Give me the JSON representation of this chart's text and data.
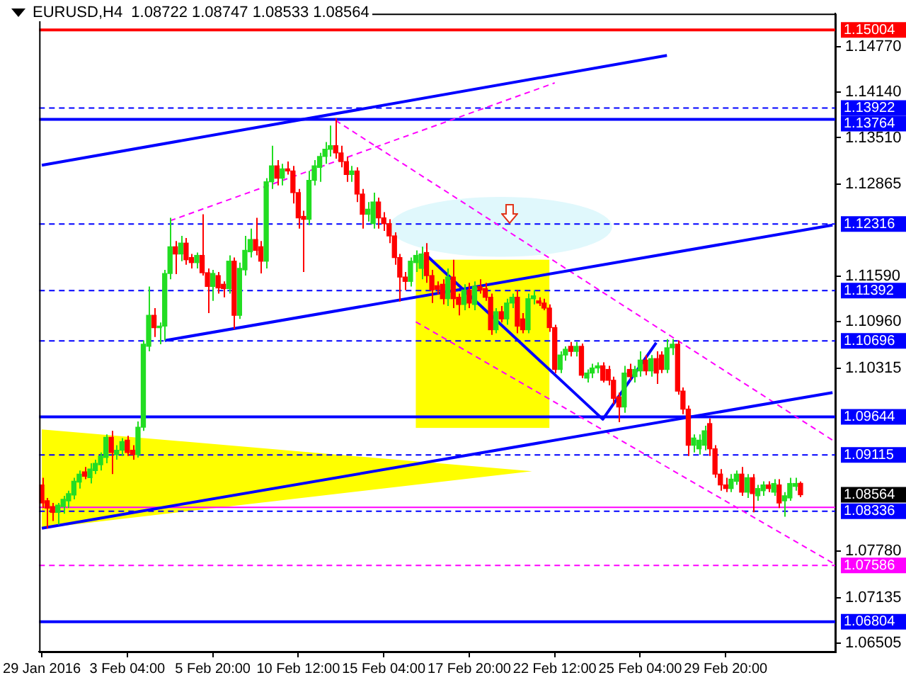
{
  "chart_data": {
    "type": "candlestick",
    "title": "EURUSD,H4  1.08722 1.08747 1.08533 1.08564",
    "categories": [
      "29 Jan 2016",
      null,
      null,
      null,
      null,
      null,
      null,
      null,
      null,
      null,
      null,
      null,
      null,
      null,
      null,
      null,
      "3 Feb 04:00",
      null,
      null,
      null,
      null,
      null,
      null,
      null,
      null,
      null,
      null,
      null,
      null,
      null,
      null,
      null,
      "5 Feb 20:00",
      null,
      null,
      null,
      null,
      null,
      null,
      null,
      null,
      null,
      null,
      null,
      null,
      null,
      null,
      null,
      "10 Feb 12:00",
      null,
      null,
      null,
      null,
      null,
      null,
      null,
      null,
      null,
      null,
      null,
      null,
      null,
      null,
      null,
      "15 Feb 04:00",
      null,
      null,
      null,
      null,
      null,
      null,
      null,
      null,
      null,
      null,
      null,
      null,
      null,
      null,
      null,
      "17 Feb 20:00",
      null,
      null,
      null,
      null,
      null,
      null,
      null,
      null,
      null,
      null,
      null,
      null,
      null,
      null,
      null,
      "22 Feb 12:00",
      null,
      null,
      null,
      null,
      null,
      null,
      null,
      null,
      null,
      null,
      null,
      null,
      null,
      null,
      null,
      "25 Feb 04:00",
      null,
      null,
      null,
      null,
      null,
      null,
      null,
      null,
      null,
      null,
      null,
      null,
      null,
      null,
      null,
      "29 Feb 20:00",
      null,
      null,
      null,
      null,
      null,
      null,
      null,
      null,
      null,
      null,
      null,
      null,
      null,
      null,
      null,
      null,
      null,
      null,
      null,
      null
    ],
    "ohlc": [
      [
        1.087,
        1.088,
        1.0838,
        1.0845
      ],
      [
        1.0848,
        1.0852,
        1.081,
        1.0838
      ],
      [
        1.084,
        1.0845,
        1.082,
        1.0832
      ],
      [
        1.0832,
        1.0845,
        1.0815,
        1.0842
      ],
      [
        1.084,
        1.0855,
        1.083,
        1.085
      ],
      [
        1.0848,
        1.0862,
        1.0838,
        1.0858
      ],
      [
        1.0856,
        1.088,
        1.085,
        1.0875
      ],
      [
        1.0874,
        1.089,
        1.0865,
        1.0885
      ],
      [
        1.0888,
        1.0895,
        1.0878,
        1.0882
      ],
      [
        1.088,
        1.09,
        1.0872,
        1.0892
      ],
      [
        1.089,
        1.0905,
        1.0885,
        1.09
      ],
      [
        1.0898,
        1.0915,
        1.089,
        1.091
      ],
      [
        1.0908,
        1.094,
        1.09,
        1.0936
      ],
      [
        1.0936,
        1.0945,
        1.0885,
        1.0915
      ],
      [
        1.0912,
        1.0925,
        1.0905,
        1.0918
      ],
      [
        1.0918,
        1.0935,
        1.091,
        1.093
      ],
      [
        1.0932,
        1.0938,
        1.091,
        1.0915
      ],
      [
        1.0918,
        1.0925,
        1.0905,
        1.0912
      ],
      [
        1.0912,
        1.0958,
        1.0908,
        1.095
      ],
      [
        1.095,
        1.107,
        1.0945,
        1.1065
      ],
      [
        1.1062,
        1.1145,
        1.1055,
        1.1105
      ],
      [
        1.1105,
        1.1115,
        1.1075,
        1.1088
      ],
      [
        1.1088,
        1.1095,
        1.1065,
        1.109
      ],
      [
        1.109,
        1.1168,
        1.107,
        1.1163
      ],
      [
        1.1163,
        1.124,
        1.1155,
        1.12
      ],
      [
        1.12,
        1.1208,
        1.1162,
        1.119
      ],
      [
        1.119,
        1.1215,
        1.118,
        1.1205
      ],
      [
        1.1205,
        1.1212,
        1.1175,
        1.1182
      ],
      [
        1.1185,
        1.119,
        1.117,
        1.1178
      ],
      [
        1.1178,
        1.1192,
        1.117,
        1.1188
      ],
      [
        1.1188,
        1.1245,
        1.116,
        1.1164
      ],
      [
        1.1164,
        1.117,
        1.1108,
        1.1145
      ],
      [
        1.1145,
        1.1168,
        1.1125,
        1.1163
      ],
      [
        1.116,
        1.1165,
        1.1135,
        1.1143
      ],
      [
        1.1148,
        1.1152,
        1.113,
        1.1142
      ],
      [
        1.1142,
        1.1188,
        1.1135,
        1.118
      ],
      [
        1.118,
        1.1185,
        1.1086,
        1.1105
      ],
      [
        1.1105,
        1.1178,
        1.11,
        1.117
      ],
      [
        1.1168,
        1.1215,
        1.116,
        1.1195
      ],
      [
        1.1193,
        1.1225,
        1.1185,
        1.121
      ],
      [
        1.121,
        1.124,
        1.1188,
        1.1195
      ],
      [
        1.12,
        1.1208,
        1.1163,
        1.118
      ],
      [
        1.118,
        1.1295,
        1.117,
        1.129
      ],
      [
        1.129,
        1.134,
        1.128,
        1.1312
      ],
      [
        1.1312,
        1.132,
        1.1285,
        1.1295
      ],
      [
        1.1295,
        1.1315,
        1.1285,
        1.1308
      ],
      [
        1.1308,
        1.1318,
        1.13,
        1.1305
      ],
      [
        1.1305,
        1.1312,
        1.126,
        1.1275
      ],
      [
        1.1275,
        1.128,
        1.1225,
        1.124
      ],
      [
        1.1242,
        1.125,
        1.1165,
        1.1238
      ],
      [
        1.1238,
        1.1305,
        1.123,
        1.1292
      ],
      [
        1.1292,
        1.132,
        1.1285,
        1.1312
      ],
      [
        1.131,
        1.133,
        1.129,
        1.1325
      ],
      [
        1.1325,
        1.1345,
        1.1315,
        1.1335
      ],
      [
        1.1335,
        1.1368,
        1.1325,
        1.134
      ],
      [
        1.134,
        1.1378,
        1.1322,
        1.133
      ],
      [
        1.133,
        1.134,
        1.131,
        1.1318
      ],
      [
        1.1318,
        1.1325,
        1.129,
        1.13
      ],
      [
        1.13,
        1.1312,
        1.129,
        1.1305
      ],
      [
        1.1305,
        1.131,
        1.1262,
        1.1273
      ],
      [
        1.1273,
        1.128,
        1.1225,
        1.1245
      ],
      [
        1.1245,
        1.1262,
        1.1235,
        1.1252
      ],
      [
        1.1232,
        1.1275,
        1.1225,
        1.1262
      ],
      [
        1.1262,
        1.1268,
        1.1225,
        1.124
      ],
      [
        1.124,
        1.1248,
        1.1222,
        1.1232
      ],
      [
        1.1232,
        1.1238,
        1.1205,
        1.1215
      ],
      [
        1.1215,
        1.122,
        1.1175,
        1.1185
      ],
      [
        1.1185,
        1.119,
        1.1124,
        1.1158
      ],
      [
        1.1158,
        1.1165,
        1.114,
        1.1152
      ],
      [
        1.1152,
        1.1185,
        1.1145,
        1.118
      ],
      [
        1.1178,
        1.1195,
        1.1165,
        1.1188
      ],
      [
        1.117,
        1.12,
        1.1155,
        1.119
      ],
      [
        1.1192,
        1.1205,
        1.115,
        1.116
      ],
      [
        1.116,
        1.1168,
        1.1122,
        1.114
      ],
      [
        1.1146,
        1.1152,
        1.1134,
        1.1141
      ],
      [
        1.1148,
        1.1155,
        1.112,
        1.1128
      ],
      [
        1.1128,
        1.117,
        1.1118,
        1.1158
      ],
      [
        1.1158,
        1.1182,
        1.1115,
        1.1128
      ],
      [
        1.113,
        1.1135,
        1.1105,
        1.112
      ],
      [
        1.112,
        1.1148,
        1.1112,
        1.114
      ],
      [
        1.114,
        1.115,
        1.1115,
        1.1122
      ],
      [
        1.112,
        1.1152,
        1.1112,
        1.1145
      ],
      [
        1.1145,
        1.1155,
        1.1135,
        1.114
      ],
      [
        1.1142,
        1.115,
        1.1125,
        1.113
      ],
      [
        1.113,
        1.1135,
        1.1078,
        1.1085
      ],
      [
        1.1085,
        1.1115,
        1.108,
        1.111
      ],
      [
        1.111,
        1.1118,
        1.1095,
        1.11
      ],
      [
        1.11,
        1.1128,
        1.1092,
        1.1122
      ],
      [
        1.1122,
        1.1135,
        1.1115,
        1.113
      ],
      [
        1.113,
        1.114,
        1.108,
        1.109
      ],
      [
        1.11,
        1.1108,
        1.108,
        1.1085
      ],
      [
        1.1085,
        1.1135,
        1.108,
        1.1128
      ],
      [
        1.1128,
        1.114,
        1.112,
        1.1132
      ],
      [
        1.1125,
        1.113,
        1.1118,
        1.1122
      ],
      [
        1.1122,
        1.1128,
        1.1112,
        1.1115
      ],
      [
        1.1115,
        1.112,
        1.1082,
        1.1088
      ],
      [
        1.1088,
        1.1092,
        1.1025,
        1.103
      ],
      [
        1.103,
        1.1055,
        1.1025,
        1.105
      ],
      [
        1.105,
        1.1062,
        1.1042,
        1.1058
      ],
      [
        1.1062,
        1.1068,
        1.1048,
        1.1055
      ],
      [
        1.1055,
        1.1068,
        1.1048,
        1.1062
      ],
      [
        1.1062,
        1.1066,
        1.1018,
        1.1022
      ],
      [
        1.1018,
        1.103,
        1.1012,
        1.1025
      ],
      [
        1.1025,
        1.1038,
        1.1018,
        1.1032
      ],
      [
        1.1032,
        1.104,
        1.1025,
        1.1035
      ],
      [
        1.1035,
        1.104,
        1.1012,
        1.1015
      ],
      [
        1.103,
        1.1035,
        1.1008,
        1.1015
      ],
      [
        1.1015,
        1.102,
        1.0982,
        1.099
      ],
      [
        1.0992,
        1.0998,
        1.0957,
        1.0978
      ],
      [
        1.0978,
        1.1035,
        1.097,
        1.1025
      ],
      [
        1.103,
        1.1038,
        1.1015,
        1.102
      ],
      [
        1.102,
        1.1035,
        1.1012,
        1.103
      ],
      [
        1.1028,
        1.1055,
        1.102,
        1.1043
      ],
      [
        1.1043,
        1.105,
        1.1022,
        1.1028
      ],
      [
        1.1028,
        1.105,
        1.102,
        1.1045
      ],
      [
        1.1045,
        1.1055,
        1.101,
        1.1025
      ],
      [
        1.105,
        1.1055,
        1.1025,
        1.103
      ],
      [
        1.103,
        1.1072,
        1.1025,
        1.106
      ],
      [
        1.106,
        1.1072,
        1.105,
        1.1065
      ],
      [
        1.1065,
        1.107,
        1.0995,
        1.1
      ],
      [
        1.1,
        1.1005,
        1.0968,
        1.0975
      ],
      [
        1.0975,
        1.098,
        1.091,
        1.0925
      ],
      [
        1.0925,
        1.094,
        1.0915,
        1.0935
      ],
      [
        1.092,
        1.094,
        1.0912,
        1.0932
      ],
      [
        1.0925,
        1.0952,
        1.0918,
        1.0945
      ],
      [
        1.0955,
        1.0962,
        1.091,
        1.092
      ],
      [
        1.092,
        1.0925,
        1.088,
        1.0885
      ],
      [
        1.0885,
        1.0892,
        1.0862,
        1.087
      ],
      [
        1.087,
        1.088,
        1.086,
        1.0865
      ],
      [
        1.0865,
        1.0885,
        1.086,
        1.0878
      ],
      [
        1.0875,
        1.089,
        1.087,
        1.0885
      ],
      [
        1.0885,
        1.0895,
        1.0855,
        1.086
      ],
      [
        1.086,
        1.0885,
        1.0852,
        1.088
      ],
      [
        1.088,
        1.0885,
        1.0832,
        1.0858
      ],
      [
        1.0855,
        1.087,
        1.0848,
        1.0865
      ],
      [
        1.0862,
        1.0875,
        1.0855,
        1.087
      ],
      [
        1.087,
        1.0875,
        1.086,
        1.0865
      ],
      [
        1.086,
        1.0878,
        1.0855,
        1.0872
      ],
      [
        1.087,
        1.0878,
        1.0838,
        1.0845
      ],
      [
        1.0848,
        1.086,
        1.0826,
        1.0855
      ],
      [
        1.0852,
        1.088,
        1.0848,
        1.0872
      ],
      [
        1.0868,
        1.088,
        1.0862,
        1.0872
      ],
      [
        1.08722,
        1.08747,
        1.08533,
        1.08564
      ],
      null,
      null,
      null,
      null,
      null,
      null
    ],
    "colors": [
      "#ff0000",
      "#ff0000",
      "#ff0000",
      "#22dd22",
      "#22dd22",
      "#22dd22",
      "#22dd22",
      "#22dd22",
      "#ff0000",
      "#22dd22",
      "#22dd22",
      "#22dd22",
      "#22dd22",
      "#ff0000",
      "#22dd22",
      "#22dd22",
      "#ff0000",
      "#ff0000",
      "#22dd22",
      "#22dd22",
      "#22dd22",
      "#ff0000",
      "#22dd22",
      "#22dd22",
      "#22dd22",
      "#ff0000",
      "#22dd22",
      "#ff0000",
      "#ff0000",
      "#22dd22",
      "#ff0000",
      "#ff0000",
      "#22dd22",
      "#ff0000",
      "#ff0000",
      "#22dd22",
      "#ff0000",
      "#22dd22",
      "#22dd22",
      "#22dd22",
      "#ff0000",
      "#ff0000",
      "#22dd22",
      "#22dd22",
      "#ff0000",
      "#22dd22",
      "#ff0000",
      "#ff0000",
      "#ff0000",
      "#ff0000",
      "#22dd22",
      "#22dd22",
      "#22dd22",
      "#22dd22",
      "#22dd22",
      "#ff0000",
      "#ff0000",
      "#ff0000",
      "#22dd22",
      "#ff0000",
      "#ff0000",
      "#22dd22",
      "#22dd22",
      "#ff0000",
      "#ff0000",
      "#ff0000",
      "#ff0000",
      "#ff0000",
      "#ff0000",
      "#22dd22",
      "#22dd22",
      "#22dd22",
      "#ff0000",
      "#ff0000",
      "#ff0000",
      "#ff0000",
      "#22dd22",
      "#ff0000",
      "#ff0000",
      "#22dd22",
      "#ff0000",
      "#22dd22",
      "#ff0000",
      "#ff0000",
      "#ff0000",
      "#22dd22",
      "#ff0000",
      "#22dd22",
      "#22dd22",
      "#ff0000",
      "#ff0000",
      "#22dd22",
      "#22dd22",
      "#ff0000",
      "#ff0000",
      "#ff0000",
      "#ff0000",
      "#22dd22",
      "#22dd22",
      "#ff0000",
      "#22dd22",
      "#ff0000",
      "#22dd22",
      "#22dd22",
      "#22dd22",
      "#ff0000",
      "#ff0000",
      "#ff0000",
      "#ff0000",
      "#22dd22",
      "#ff0000",
      "#22dd22",
      "#22dd22",
      "#ff0000",
      "#22dd22",
      "#ff0000",
      "#ff0000",
      "#22dd22",
      "#22dd22",
      "#ff0000",
      "#ff0000",
      "#ff0000",
      "#22dd22",
      "#22dd22",
      "#22dd22",
      "#ff0000",
      "#ff0000",
      "#ff0000",
      "#ff0000",
      "#22dd22",
      "#22dd22",
      "#ff0000",
      "#22dd22",
      "#ff0000",
      "#22dd22",
      "#22dd22",
      "#ff0000",
      "#22dd22",
      "#ff0000",
      "#22dd22",
      "#22dd22",
      "#22dd22",
      "#ff0000",
      null,
      null,
      null,
      null,
      null,
      null
    ],
    "series": [
      {
        "type": "line",
        "color": "#0000ff",
        "values": [
          1.1313,
          null,
          null,
          null,
          null,
          null,
          null,
          null,
          null,
          null,
          null,
          null,
          null,
          null,
          null,
          null,
          null,
          null,
          null,
          null,
          null,
          null,
          null,
          null,
          null,
          null,
          null,
          null,
          null,
          null,
          null,
          null,
          null,
          null,
          null,
          null,
          null,
          null,
          null,
          null,
          null,
          null,
          null,
          null,
          null,
          null,
          null,
          null,
          null,
          null,
          null,
          null,
          null,
          null,
          null,
          null,
          null,
          null,
          null,
          null,
          null,
          null,
          null,
          null,
          null,
          null,
          null,
          null,
          null,
          null,
          null,
          null,
          null,
          null,
          null,
          null,
          null,
          null,
          null,
          null,
          null,
          null,
          null,
          null,
          null,
          null,
          null,
          null,
          null,
          null,
          null,
          null,
          null,
          null,
          null,
          null,
          null,
          null,
          null,
          null,
          null,
          null,
          null,
          null,
          null,
          null,
          null,
          null,
          null,
          null,
          null,
          null,
          null,
          null,
          null,
          null,
          null,
          1.1465,
          null,
          null,
          null,
          null,
          null,
          null,
          null,
          null,
          null,
          null,
          null,
          null,
          null,
          null,
          null,
          null,
          null,
          null,
          null,
          null,
          null,
          null,
          null,
          null,
          null,
          null,
          null,
          null,
          null,
          null,
          null
        ]
      },
      {
        "type": "line",
        "color": "#0000ff",
        "values": [
          1.081,
          null,
          null,
          null,
          null,
          null,
          null,
          null,
          null,
          null,
          null,
          null,
          null,
          null,
          null,
          null,
          null,
          null,
          null,
          null,
          null,
          null,
          null,
          null,
          null,
          null,
          null,
          null,
          null,
          null,
          null,
          null,
          null,
          null,
          null,
          null,
          null,
          null,
          null,
          null,
          null,
          null,
          null,
          null,
          null,
          null,
          null,
          null,
          null,
          null,
          null,
          null,
          null,
          null,
          null,
          null,
          null,
          null,
          null,
          null,
          null,
          null,
          null,
          null,
          null,
          null,
          null,
          null,
          null,
          null,
          null,
          null,
          null,
          null,
          null,
          null,
          null,
          null,
          null,
          null,
          null,
          null,
          null,
          null,
          null,
          null,
          null,
          null,
          null,
          null,
          null,
          null,
          null,
          null,
          null,
          null,
          null,
          null,
          null,
          null,
          null,
          null,
          null,
          null,
          null,
          null,
          null,
          null,
          null,
          null,
          null,
          null,
          null,
          null,
          null,
          null,
          null,
          null,
          null,
          null,
          null,
          null,
          null,
          null,
          null,
          null,
          null,
          null,
          null,
          null,
          null,
          null,
          null,
          null,
          null,
          null,
          null,
          null,
          null,
          null,
          null,
          null,
          null,
          null,
          null,
          null,
          null,
          null,
          1.0998
        ]
      },
      {
        "type": "line",
        "color": "#0000ff",
        "values": [
          null,
          null,
          null,
          null,
          null,
          null,
          null,
          null,
          null,
          null,
          null,
          null,
          null,
          null,
          null,
          null,
          null,
          null,
          null,
          null,
          null,
          null,
          null,
          1.107,
          null,
          null,
          null,
          null,
          null,
          null,
          null,
          null,
          null,
          null,
          null,
          null,
          null,
          null,
          null,
          null,
          null,
          null,
          null,
          null,
          null,
          null,
          null,
          null,
          null,
          null,
          null,
          null,
          null,
          null,
          null,
          null,
          null,
          null,
          null,
          null,
          null,
          null,
          null,
          null,
          null,
          null,
          null,
          null,
          null,
          null,
          null,
          null,
          null,
          null,
          null,
          null,
          null,
          null,
          null,
          null,
          null,
          null,
          null,
          null,
          null,
          null,
          null,
          null,
          null,
          null,
          null,
          null,
          null,
          null,
          null,
          null,
          null,
          null,
          null,
          null,
          null,
          null,
          null,
          null,
          null,
          null,
          null,
          null,
          null,
          null,
          null,
          null,
          null,
          null,
          null,
          null,
          null,
          null,
          null,
          null,
          null,
          null,
          null,
          null,
          null,
          null,
          null,
          null,
          null,
          null,
          null,
          null,
          null,
          null,
          null,
          null,
          null,
          null,
          null,
          null,
          null,
          null,
          null,
          null,
          null,
          null,
          null,
          null,
          1.123
        ]
      },
      {
        "type": "line",
        "color": "#ff00ff",
        "line_style": "dashed",
        "values": [
          null,
          null,
          null,
          null,
          null,
          null,
          null,
          null,
          null,
          null,
          null,
          null,
          null,
          null,
          null,
          null,
          null,
          null,
          null,
          null,
          null,
          null,
          null,
          null,
          1.1236,
          null,
          null,
          null,
          null,
          null,
          null,
          null,
          null,
          null,
          null,
          null,
          null,
          null,
          null,
          null,
          null,
          null,
          null,
          null,
          null,
          null,
          null,
          null,
          null,
          null,
          null,
          null,
          null,
          null,
          null,
          null,
          null,
          null,
          null,
          null,
          null,
          null,
          null,
          null,
          null,
          null,
          null,
          null,
          null,
          null,
          null,
          null,
          null,
          null,
          null,
          null,
          null,
          null,
          null,
          null,
          null,
          null,
          null,
          null,
          null,
          null,
          null,
          null,
          null,
          null,
          null,
          null,
          null,
          null,
          null,
          null,
          1.1427,
          null,
          null,
          null,
          null,
          null,
          null,
          null,
          null,
          null,
          null,
          null,
          null,
          null,
          null,
          null,
          null,
          null,
          null,
          null,
          null,
          null,
          null,
          null,
          null,
          null,
          null,
          null,
          null,
          null,
          null,
          null,
          null,
          null,
          null,
          null,
          null,
          null,
          null,
          null,
          null,
          null,
          null,
          null,
          null,
          null,
          null,
          null,
          null,
          null,
          null,
          null,
          null
        ]
      },
      {
        "type": "line",
        "color": "#ff00ff",
        "line_style": "dashed",
        "values": [
          null,
          null,
          null,
          null,
          null,
          null,
          null,
          null,
          null,
          null,
          null,
          null,
          null,
          null,
          null,
          null,
          null,
          null,
          null,
          null,
          null,
          null,
          null,
          null,
          null,
          null,
          null,
          null,
          null,
          null,
          null,
          null,
          null,
          null,
          null,
          null,
          null,
          null,
          null,
          null,
          null,
          null,
          null,
          null,
          null,
          null,
          null,
          null,
          null,
          null,
          null,
          null,
          null,
          null,
          null,
          1.1375,
          null,
          null,
          null,
          null,
          null,
          null,
          null,
          null,
          null,
          null,
          null,
          null,
          null,
          null,
          null,
          null,
          null,
          null,
          null,
          null,
          null,
          null,
          null,
          null,
          null,
          null,
          null,
          null,
          null,
          null,
          null,
          null,
          null,
          null,
          null,
          null,
          null,
          null,
          null,
          null,
          null,
          null,
          null,
          null,
          null,
          null,
          null,
          null,
          null,
          null,
          null,
          null,
          null,
          null,
          null,
          null,
          null,
          null,
          null,
          null,
          null,
          null,
          null,
          null,
          null,
          null,
          null,
          null,
          null,
          null,
          null,
          null,
          null,
          null,
          null,
          null,
          null,
          null,
          null,
          null,
          null,
          null,
          null,
          null,
          null,
          null,
          null,
          null,
          null,
          null,
          null,
          null,
          1.0932
        ]
      },
      {
        "type": "line",
        "color": "#ff00ff",
        "line_style": "dashed",
        "values": [
          null,
          null,
          null,
          null,
          null,
          null,
          null,
          null,
          null,
          null,
          null,
          null,
          null,
          null,
          null,
          null,
          null,
          null,
          null,
          null,
          null,
          null,
          null,
          null,
          null,
          null,
          null,
          null,
          null,
          null,
          null,
          null,
          null,
          null,
          null,
          null,
          null,
          null,
          null,
          null,
          null,
          null,
          null,
          null,
          null,
          null,
          null,
          null,
          null,
          null,
          null,
          null,
          null,
          null,
          null,
          null,
          null,
          null,
          null,
          null,
          null,
          null,
          null,
          null,
          null,
          null,
          null,
          null,
          null,
          null,
          1.1096,
          null,
          null,
          null,
          null,
          null,
          null,
          null,
          null,
          null,
          null,
          null,
          null,
          null,
          null,
          null,
          null,
          null,
          null,
          null,
          null,
          null,
          null,
          null,
          null,
          null,
          null,
          null,
          null,
          null,
          null,
          null,
          null,
          null,
          null,
          null,
          null,
          null,
          null,
          null,
          null,
          null,
          null,
          null,
          null,
          null,
          null,
          null,
          null,
          null,
          null,
          null,
          null,
          null,
          null,
          null,
          null,
          null,
          null,
          null,
          null,
          null,
          null,
          null,
          null,
          null,
          null,
          null,
          null,
          null,
          null,
          null,
          null,
          null,
          null,
          null,
          null,
          null,
          1.0762
        ]
      },
      {
        "type": "line",
        "color": "#0000ff",
        "values": [
          null,
          null,
          null,
          null,
          null,
          null,
          null,
          null,
          null,
          null,
          null,
          null,
          null,
          null,
          null,
          null,
          null,
          null,
          null,
          null,
          null,
          null,
          null,
          null,
          null,
          null,
          null,
          null,
          null,
          null,
          null,
          null,
          null,
          null,
          null,
          null,
          null,
          null,
          null,
          null,
          null,
          null,
          null,
          null,
          null,
          null,
          null,
          null,
          null,
          null,
          null,
          null,
          null,
          null,
          null,
          null,
          null,
          null,
          null,
          null,
          null,
          null,
          null,
          null,
          null,
          null,
          null,
          null,
          null,
          null,
          null,
          null,
          1.1188,
          null,
          null,
          null,
          null,
          null,
          null,
          null,
          null,
          null,
          null,
          null,
          null,
          null,
          null,
          null,
          null,
          null,
          null,
          null,
          null,
          null,
          null,
          null,
          null,
          null,
          null,
          null,
          null,
          null,
          null,
          null,
          null,
          1.0961,
          null,
          null,
          null,
          null,
          null,
          null,
          null,
          null,
          null,
          1.1067,
          null,
          null,
          null,
          null,
          null,
          null,
          null,
          null,
          null,
          null,
          null,
          null,
          null,
          null,
          null,
          null,
          null,
          null,
          null,
          null,
          null,
          null,
          null,
          null,
          null,
          null,
          null,
          null,
          null,
          null,
          null,
          null,
          null
        ]
      }
    ],
    "ref_lines": [
      {
        "axis": "y",
        "value": 1.15004,
        "label": "1.15004",
        "color": "#ff0000",
        "line_style": "solid"
      },
      {
        "axis": "y",
        "value": 1.13922,
        "label": "1.13922",
        "color": "#0000ff",
        "line_style": "dashed"
      },
      {
        "axis": "y",
        "value": 1.13764,
        "label": "1.13764",
        "color": "#0000ff",
        "line_style": "solid"
      },
      {
        "axis": "y",
        "value": 1.12316,
        "label": "1.12316",
        "color": "#0000ff",
        "line_style": "dashed"
      },
      {
        "axis": "y",
        "value": 1.11392,
        "label": "1.11392",
        "color": "#0000ff",
        "line_style": "dashed"
      },
      {
        "axis": "y",
        "value": 1.10696,
        "label": "1.10696",
        "color": "#0000ff",
        "line_style": "dashed"
      },
      {
        "axis": "y",
        "value": 1.09644,
        "label": "1.09644",
        "color": "#0000ff",
        "line_style": "solid"
      },
      {
        "axis": "y",
        "value": 1.09115,
        "label": "1.09115",
        "color": "#0000ff",
        "line_style": "dashed"
      },
      {
        "axis": "y",
        "value": 1.0839,
        "color": "#ff00ff",
        "line_style": "solid"
      },
      {
        "axis": "y",
        "value": 1.08336,
        "label": "1.08336",
        "color": "#0000ff",
        "line_style": "dashed"
      },
      {
        "axis": "y",
        "value": 1.07586,
        "label": "1.07586",
        "color": "#ff00ff",
        "line_style": "dashed"
      },
      {
        "axis": "y",
        "value": 1.06804,
        "label": "1.06804",
        "color": "#0000ff",
        "line_style": "solid"
      }
    ],
    "annotations": [
      "1.08564"
    ],
    "ylim": [
      1.0639,
      1.1523
    ],
    "yticks": [
      {
        "value": 1.1477,
        "label": "1.14770"
      },
      {
        "value": 1.1414,
        "label": "1.14140"
      },
      {
        "value": 1.1351,
        "label": "1.13510"
      },
      {
        "value": 1.12865,
        "label": "1.12865"
      },
      {
        "value": 1.1159,
        "label": "1.11590"
      },
      {
        "value": 1.1096,
        "label": "1.10960"
      },
      {
        "value": 1.10315,
        "label": "1.10315"
      },
      {
        "value": 1.0778,
        "label": "1.07780"
      },
      {
        "value": 1.07135,
        "label": "1.07135"
      },
      {
        "value": 1.06505,
        "label": "1.06505"
      }
    ],
    "grid": false,
    "legend": false,
    "marker": "none"
  }
}
